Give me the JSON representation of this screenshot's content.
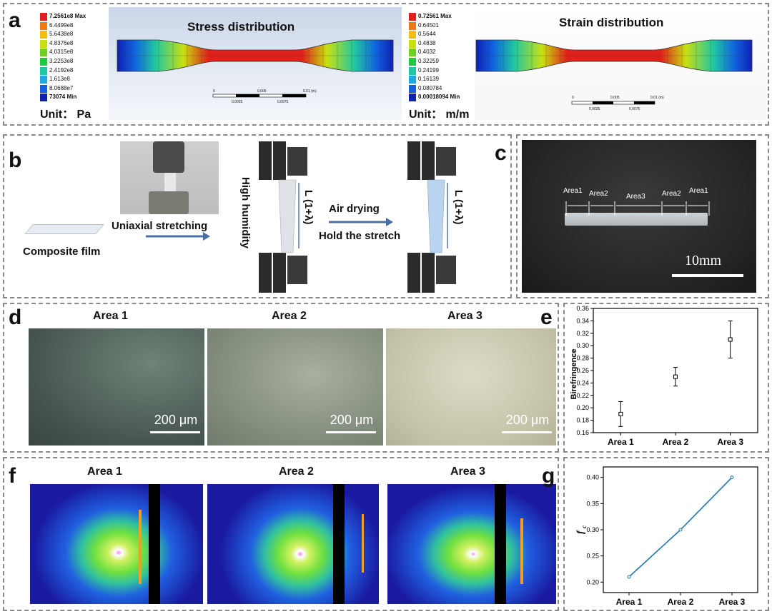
{
  "panels": {
    "a": "a",
    "b": "b",
    "c": "c",
    "d": "d",
    "e": "e",
    "f": "f",
    "g": "g"
  },
  "panel_a": {
    "stress": {
      "title": "Stress distribution",
      "unit": "Unit： Pa",
      "legend": [
        "7.2561e8 Max",
        "6.4499e8",
        "5.6438e8",
        "4.8376e8",
        "4.0315e8",
        "3.2253e8",
        "2.4192e8",
        "1.613e8",
        "8.0688e7",
        "73074 Min"
      ],
      "scale": [
        "0",
        "0.005",
        "0.01 (m)",
        "0.0025",
        "0.0075"
      ]
    },
    "strain": {
      "title": "Strain distribution",
      "unit": "Unit： m/m",
      "legend": [
        "0.72561 Max",
        "0.64501",
        "0.5644",
        "0.4838",
        "0.4032",
        "0.32259",
        "0.24199",
        "0.16139",
        "0.080784",
        "0.00018094 Min"
      ],
      "scale": [
        "0",
        "0.005",
        "0.01 (m)",
        "0.0025",
        "0.0075"
      ]
    },
    "colors": [
      "#e0201a",
      "#f07a10",
      "#f0c010",
      "#c8e010",
      "#70d020",
      "#20c840",
      "#20c8a0",
      "#20a8e0",
      "#1060e0",
      "#1020b0"
    ]
  },
  "panel_b": {
    "composite_film": "Composite film",
    "uniaxial": "Uniaxial stretching",
    "high_humidity": "High humidity",
    "length1": "L (1+λ)",
    "air_drying": "Air drying",
    "hold": "Hold the stretch",
    "length2": "L (1+λ)"
  },
  "panel_c": {
    "areas": [
      "Area1",
      "Area2",
      "Area3",
      "Area2",
      "Area1"
    ],
    "scale": "10mm"
  },
  "panel_d": {
    "titles": [
      "Area 1",
      "Area 2",
      "Area 3"
    ],
    "scale": "200 μm"
  },
  "chart_data": [
    {
      "id": "e",
      "type": "scatter",
      "categories": [
        "Area 1",
        "Area 2",
        "Area 3"
      ],
      "values": [
        0.19,
        0.25,
        0.31
      ],
      "errors": [
        0.02,
        0.015,
        0.03
      ],
      "ylabel": "Birefringence",
      "ylim": [
        0.16,
        0.36
      ],
      "yticks": [
        "0.16",
        "0.18",
        "0.20",
        "0.22",
        "0.24",
        "0.26",
        "0.28",
        "0.30",
        "0.32",
        "0.34",
        "0.36"
      ]
    },
    {
      "id": "g",
      "type": "line",
      "categories": [
        "Area 1",
        "Area 2",
        "Area 3"
      ],
      "values": [
        0.21,
        0.3,
        0.4
      ],
      "ylabel": "f",
      "ylabel_sub": "c",
      "ylim": [
        0.18,
        0.42
      ],
      "yticks": [
        "0.20",
        "0.25",
        "0.30",
        "0.35",
        "0.40"
      ],
      "color": "#1f77b4"
    }
  ],
  "panel_f": {
    "titles": [
      "Area 1",
      "Area 2",
      "Area 3"
    ]
  }
}
